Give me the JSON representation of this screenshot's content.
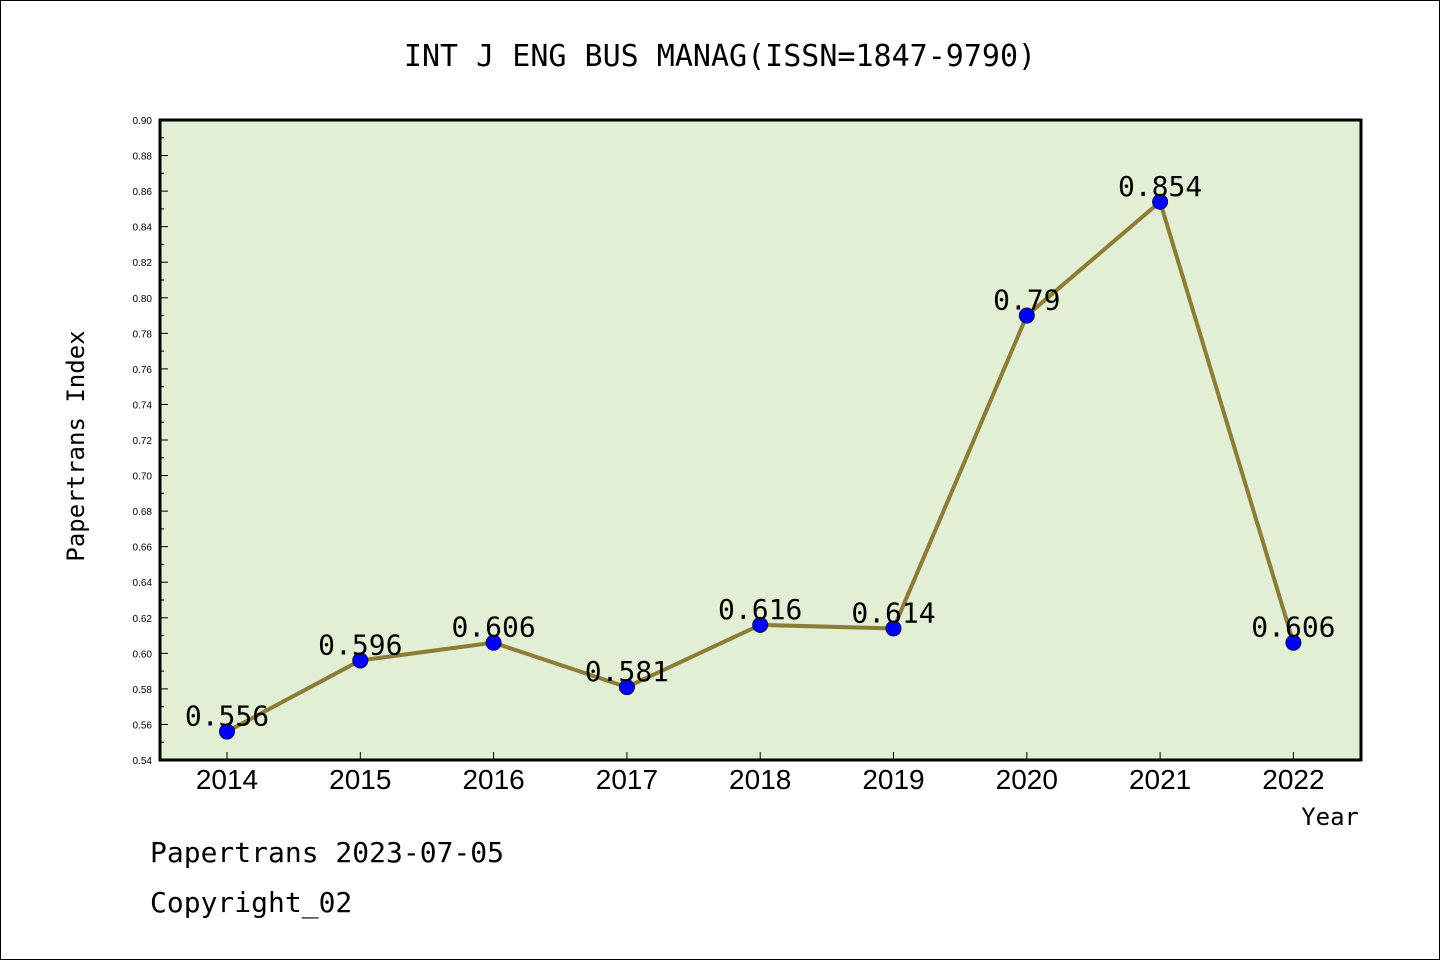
{
  "colors": {
    "plot_background": "#e2efd4",
    "line": "#8b7d35",
    "marker": "#0000ff",
    "axis": "#000000",
    "text": "#000000"
  },
  "chart_data": {
    "type": "line",
    "title": "INT J ENG BUS MANAG(ISSN=1847-9790)",
    "xlabel": "Year",
    "ylabel": "Papertrans Index",
    "categories": [
      "2014",
      "2015",
      "2016",
      "2017",
      "2018",
      "2019",
      "2020",
      "2021",
      "2022"
    ],
    "series": [
      {
        "values": [
          0.556,
          0.596,
          0.606,
          0.581,
          0.616,
          0.614,
          0.79,
          0.854,
          0.606
        ],
        "labels": [
          "0.556",
          "0.596",
          "0.606",
          "0.581",
          "0.616",
          "0.614",
          "0.79",
          "0.854",
          "0.606"
        ]
      }
    ],
    "ylim": [
      0.54,
      0.9
    ],
    "yticks": [
      "0.54",
      "0.56",
      "0.58",
      "0.60",
      "0.62",
      "0.64",
      "0.66",
      "0.68",
      "0.70",
      "0.72",
      "0.74",
      "0.76",
      "0.78",
      "0.80",
      "0.82",
      "0.84",
      "0.86",
      "0.88",
      "0.90"
    ],
    "grid": false,
    "legend": "none"
  },
  "footer": {
    "date_line": "Papertrans 2023-07-05",
    "copyright_line": "Copyright_02"
  }
}
